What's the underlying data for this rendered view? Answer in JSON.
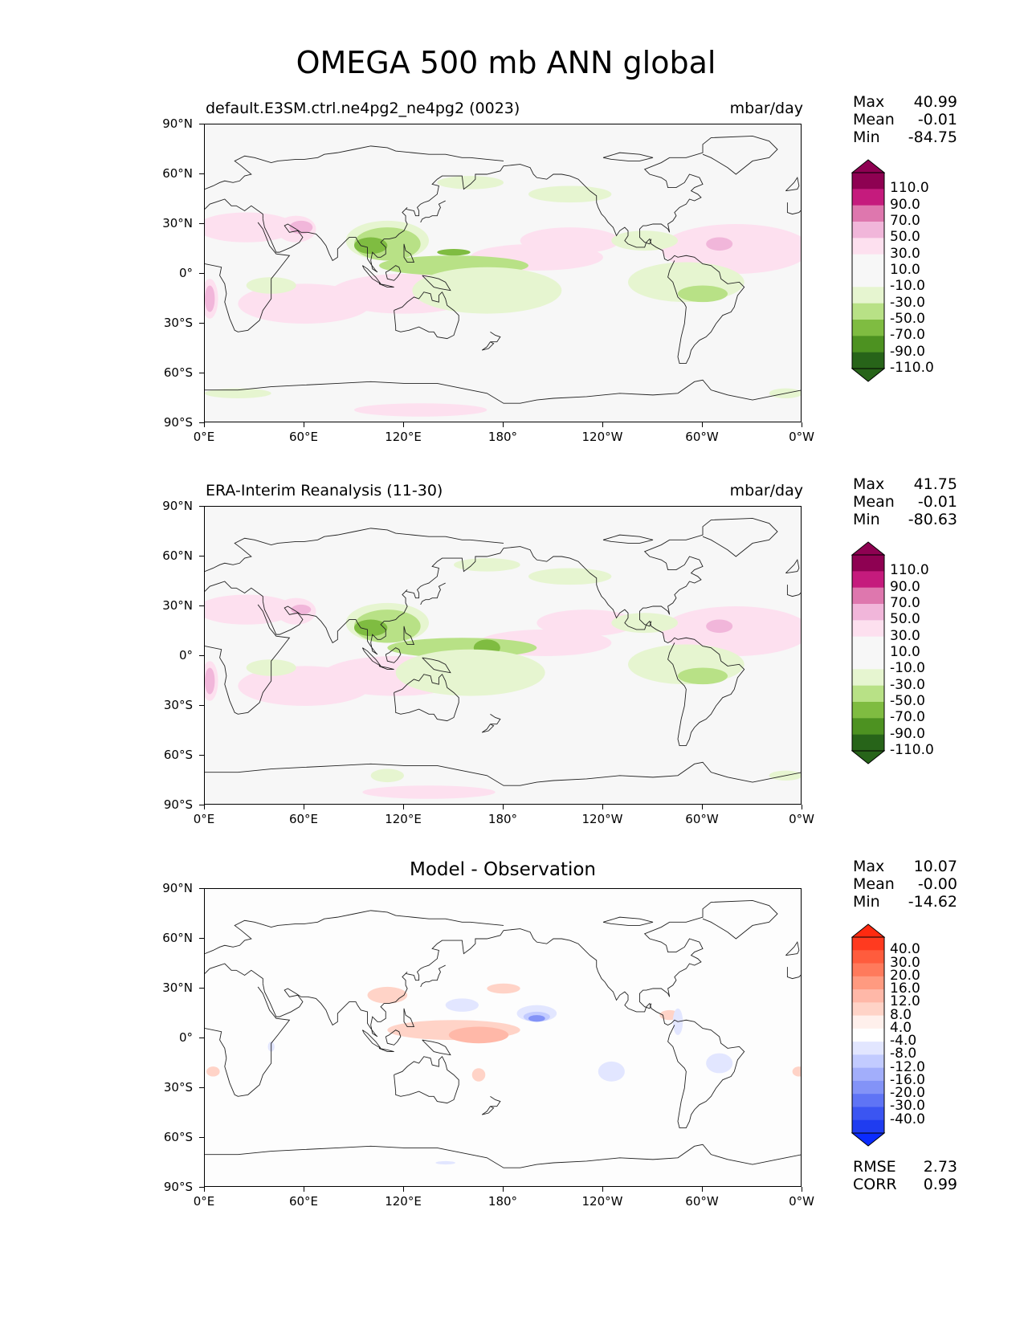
{
  "figure_title": "OMEGA 500 mb ANN global",
  "x_ticks": [
    "0°E",
    "60°E",
    "120°E",
    "180°",
    "120°W",
    "60°W",
    "0°W"
  ],
  "y_ticks": [
    "90°N",
    "60°N",
    "30°N",
    "0°",
    "30°S",
    "60°S",
    "90°S"
  ],
  "panels": [
    {
      "title_left": "default.E3SM.ctrl.ne4pg2_ne4pg2 (0023)",
      "title_right": "mbar/day",
      "title_center": "",
      "stats": [
        {
          "label": "Max",
          "value": "40.99"
        },
        {
          "label": "Mean",
          "value": "-0.01"
        },
        {
          "label": "Min",
          "value": "-84.75"
        }
      ],
      "colorbar": {
        "levels": [
          "110.0",
          "90.0",
          "70.0",
          "50.0",
          "30.0",
          "10.0",
          "-10.0",
          "-30.0",
          "-50.0",
          "-70.0",
          "-90.0",
          "-110.0"
        ],
        "colors": [
          "#8e0152",
          "#c51b7d",
          "#de77ae",
          "#f1b6da",
          "#fde0ef",
          "#f7f7f7",
          "#f7f7f7",
          "#e6f5d0",
          "#b8e186",
          "#7fbc41",
          "#4d9221",
          "#276419"
        ],
        "over_color": "#8e0152",
        "under_color": "#276419"
      }
    },
    {
      "title_left": "ERA-Interim Reanalysis (11-30)",
      "title_right": "mbar/day",
      "title_center": "",
      "stats": [
        {
          "label": "Max",
          "value": "41.75"
        },
        {
          "label": "Mean",
          "value": "-0.01"
        },
        {
          "label": "Min",
          "value": "-80.63"
        }
      ],
      "colorbar": {
        "levels": [
          "110.0",
          "90.0",
          "70.0",
          "50.0",
          "30.0",
          "10.0",
          "-10.0",
          "-30.0",
          "-50.0",
          "-70.0",
          "-90.0",
          "-110.0"
        ],
        "colors": [
          "#8e0152",
          "#c51b7d",
          "#de77ae",
          "#f1b6da",
          "#fde0ef",
          "#f7f7f7",
          "#f7f7f7",
          "#e6f5d0",
          "#b8e186",
          "#7fbc41",
          "#4d9221",
          "#276419"
        ],
        "over_color": "#8e0152",
        "under_color": "#276419"
      }
    },
    {
      "title_left": "",
      "title_right": "",
      "title_center": "Model - Observation",
      "stats": [
        {
          "label": "Max",
          "value": "10.07"
        },
        {
          "label": "Mean",
          "value": "-0.00"
        },
        {
          "label": "Min",
          "value": "-14.62"
        }
      ],
      "colorbar": {
        "levels": [
          "40.0",
          "30.0",
          "20.0",
          "16.0",
          "12.0",
          "8.0",
          "4.0",
          "-4.0",
          "-8.0",
          "-12.0",
          "-16.0",
          "-20.0",
          "-30.0",
          "-40.0"
        ],
        "colors": [
          "#ff3a1f",
          "#ff5c3d",
          "#ff7a5c",
          "#ff9a80",
          "#ffb8a8",
          "#ffd3c7",
          "#fff0ec",
          "#ffffff",
          "#e2e6ff",
          "#c2cbff",
          "#a2aefb",
          "#8393f7",
          "#5f74f5",
          "#3b55f2",
          "#1f3cf0"
        ],
        "over_color": "#ff2a10",
        "under_color": "#0a2bff"
      },
      "metrics": [
        {
          "label": "RMSE",
          "value": "2.73"
        },
        {
          "label": "CORR",
          "value": "0.99"
        }
      ]
    }
  ]
}
